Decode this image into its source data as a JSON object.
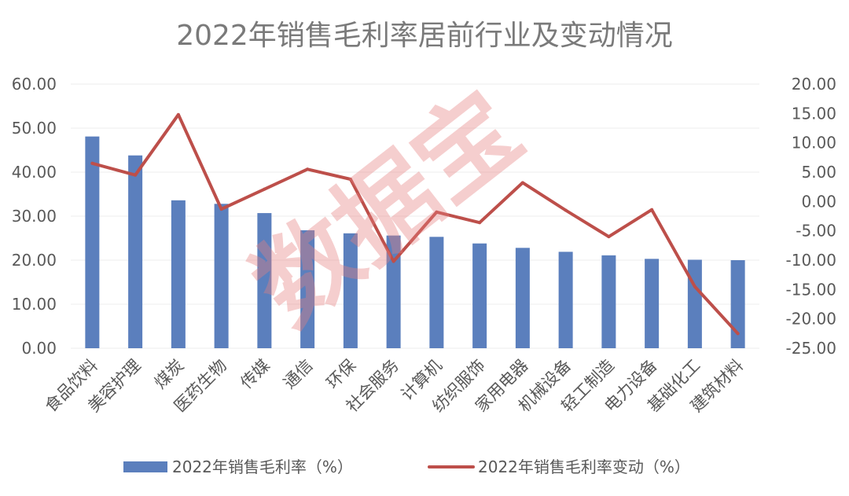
{
  "chart_data": {
    "type": "bar+line",
    "title": "2022年销售毛利率居前行业及变动情况",
    "watermark": "数据宝",
    "categories": [
      "食品饮料",
      "美容护理",
      "煤炭",
      "医药生物",
      "传媒",
      "通信",
      "环保",
      "社会服务",
      "计算机",
      "纺织服饰",
      "家用电器",
      "机械设备",
      "轻工制造",
      "电力设备",
      "基础化工",
      "建筑材料"
    ],
    "series": [
      {
        "name": "2022年销售毛利率（%）",
        "type": "bar",
        "axis": "left",
        "color": "#5b7fbd",
        "values": [
          48.1,
          43.8,
          33.6,
          32.8,
          30.7,
          26.8,
          26.1,
          25.6,
          25.3,
          23.8,
          22.8,
          21.9,
          21.1,
          20.3,
          20.1,
          20.0
        ]
      },
      {
        "name": "2022年销售毛利率变动（%）",
        "type": "line",
        "axis": "right",
        "color": "#bd4f4a",
        "values": [
          6.5,
          4.5,
          14.8,
          -1.3,
          2.1,
          5.5,
          3.8,
          -10.2,
          -1.8,
          -3.6,
          3.2,
          -1.5,
          -6.0,
          -1.4,
          -14.5,
          -22.5
        ]
      }
    ],
    "y_left": {
      "ylim": [
        0,
        60
      ],
      "ticks": [
        "0.00",
        "10.00",
        "20.00",
        "30.00",
        "40.00",
        "50.00",
        "60.00"
      ]
    },
    "y_right": {
      "ylim": [
        -25,
        20
      ],
      "ticks": [
        "-25.00",
        "-20.00",
        "-15.00",
        "-10.00",
        "-5.00",
        "0.00",
        "5.00",
        "10.00",
        "15.00",
        "20.00"
      ]
    },
    "grid": true,
    "legend_position": "bottom"
  }
}
